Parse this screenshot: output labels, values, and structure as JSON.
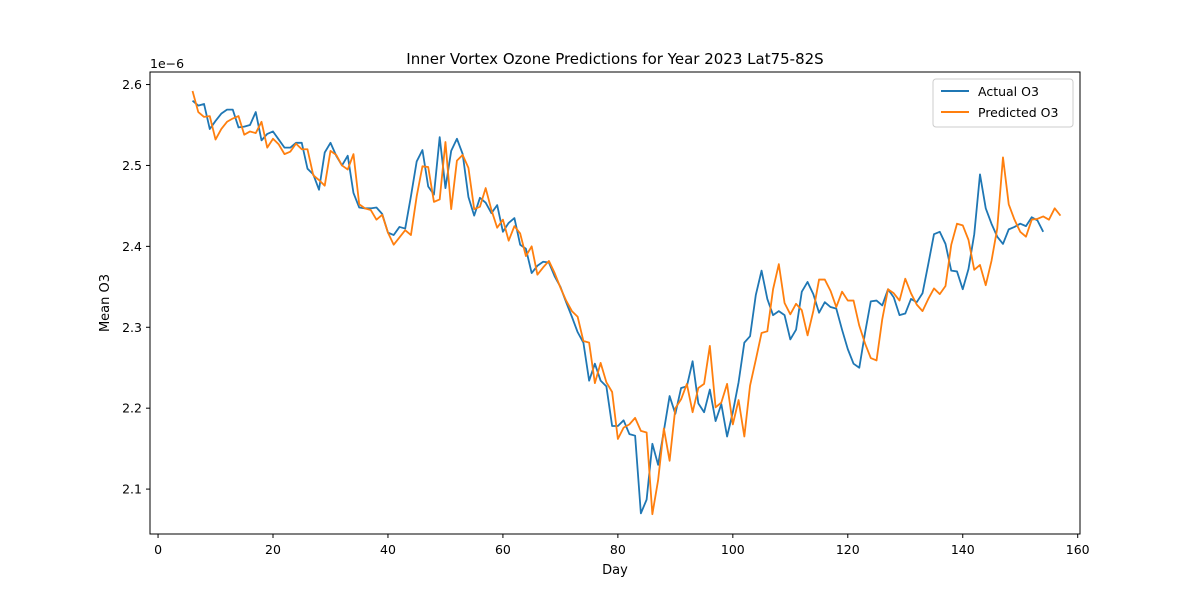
{
  "chart_data": {
    "type": "line",
    "title": "Inner Vortex Ozone Predictions for Year 2023 Lat75-82S",
    "xlabel": "Day",
    "ylabel": "Mean O3",
    "y_offset_label": "1e−6",
    "xlim": [
      -1.4,
      160.4
    ],
    "ylim": [
      2.0445,
      2.6155
    ],
    "xticks": [
      0,
      20,
      40,
      60,
      80,
      100,
      120,
      140,
      160
    ],
    "xtick_labels": [
      "0",
      "20",
      "40",
      "60",
      "80",
      "100",
      "120",
      "140",
      "160"
    ],
    "yticks": [
      2.1,
      2.2,
      2.3,
      2.4,
      2.5,
      2.6
    ],
    "ytick_labels": [
      "2.1",
      "2.2",
      "2.3",
      "2.4",
      "2.5",
      "2.6"
    ],
    "grid": false,
    "legend_position": "top-right",
    "x_start": 6,
    "series": [
      {
        "name": "Actual O3",
        "color": "#1f77b4",
        "values": [
          2.58,
          2.574,
          2.576,
          2.545,
          2.555,
          2.564,
          2.569,
          2.569,
          2.547,
          2.548,
          2.55,
          2.566,
          2.531,
          2.539,
          2.542,
          2.532,
          2.522,
          2.522,
          2.528,
          2.528,
          2.496,
          2.489,
          2.47,
          2.516,
          2.528,
          2.512,
          2.5,
          2.512,
          2.466,
          2.448,
          2.447,
          2.447,
          2.448,
          2.44,
          2.417,
          2.414,
          2.424,
          2.422,
          2.462,
          2.505,
          2.519,
          2.474,
          2.464,
          2.535,
          2.472,
          2.518,
          2.533,
          2.514,
          2.461,
          2.438,
          2.46,
          2.454,
          2.441,
          2.451,
          2.418,
          2.429,
          2.435,
          2.402,
          2.397,
          2.367,
          2.376,
          2.381,
          2.38,
          2.363,
          2.35,
          2.331,
          2.313,
          2.294,
          2.281,
          2.234,
          2.255,
          2.234,
          2.227,
          2.178,
          2.178,
          2.185,
          2.168,
          2.166,
          2.07,
          2.087,
          2.156,
          2.13,
          2.172,
          2.215,
          2.193,
          2.225,
          2.227,
          2.258,
          2.206,
          2.195,
          2.223,
          2.184,
          2.205,
          2.165,
          2.195,
          2.232,
          2.281,
          2.289,
          2.34,
          2.37,
          2.335,
          2.315,
          2.32,
          2.315,
          2.285,
          2.297,
          2.344,
          2.356,
          2.341,
          2.318,
          2.331,
          2.325,
          2.323,
          2.297,
          2.273,
          2.255,
          2.25,
          2.293,
          2.332,
          2.333,
          2.327,
          2.347,
          2.337,
          2.315,
          2.317,
          2.335,
          2.331,
          2.342,
          2.378,
          2.415,
          2.418,
          2.403,
          2.37,
          2.369,
          2.347,
          2.372,
          2.415,
          2.489,
          2.447,
          2.428,
          2.412,
          2.403,
          2.421,
          2.424,
          2.428,
          2.425,
          2.436,
          2.432,
          2.418
        ]
      },
      {
        "name": "Predicted O3",
        "color": "#ff7f0e",
        "values": [
          2.592,
          2.566,
          2.56,
          2.561,
          2.532,
          2.545,
          2.554,
          2.558,
          2.561,
          2.538,
          2.542,
          2.54,
          2.554,
          2.522,
          2.533,
          2.526,
          2.514,
          2.517,
          2.527,
          2.52,
          2.52,
          2.488,
          2.482,
          2.475,
          2.518,
          2.513,
          2.5,
          2.495,
          2.514,
          2.452,
          2.447,
          2.445,
          2.433,
          2.439,
          2.417,
          2.402,
          2.411,
          2.42,
          2.414,
          2.462,
          2.499,
          2.498,
          2.455,
          2.458,
          2.529,
          2.446,
          2.506,
          2.513,
          2.497,
          2.446,
          2.449,
          2.472,
          2.445,
          2.423,
          2.433,
          2.407,
          2.425,
          2.416,
          2.388,
          2.4,
          2.365,
          2.374,
          2.382,
          2.367,
          2.349,
          2.333,
          2.32,
          2.313,
          2.283,
          2.281,
          2.231,
          2.256,
          2.232,
          2.22,
          2.162,
          2.176,
          2.18,
          2.188,
          2.172,
          2.17,
          2.069,
          2.111,
          2.175,
          2.135,
          2.2,
          2.211,
          2.23,
          2.195,
          2.225,
          2.23,
          2.277,
          2.201,
          2.207,
          2.23,
          2.18,
          2.21,
          2.165,
          2.228,
          2.26,
          2.293,
          2.295,
          2.347,
          2.378,
          2.33,
          2.316,
          2.329,
          2.321,
          2.29,
          2.32,
          2.359,
          2.359,
          2.345,
          2.325,
          2.344,
          2.333,
          2.333,
          2.302,
          2.28,
          2.262,
          2.259,
          2.31,
          2.347,
          2.342,
          2.333,
          2.36,
          2.342,
          2.328,
          2.32,
          2.335,
          2.348,
          2.341,
          2.351,
          2.402,
          2.428,
          2.426,
          2.408,
          2.371,
          2.377,
          2.352,
          2.382,
          2.422,
          2.51,
          2.452,
          2.433,
          2.418,
          2.412,
          2.433,
          2.434,
          2.437,
          2.433,
          2.447,
          2.438
        ]
      }
    ]
  }
}
